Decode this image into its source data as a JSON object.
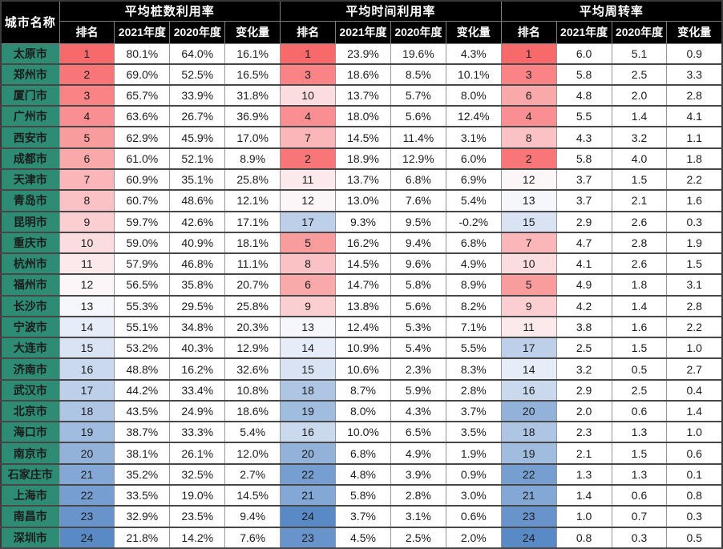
{
  "chart_data": {
    "type": "table",
    "corner_header": "城市名称",
    "groups": [
      {
        "title": "平均桩数利用率",
        "columns": [
          "排名",
          "2021年度",
          "2020年度",
          "变化量"
        ]
      },
      {
        "title": "平均时间利用率",
        "columns": [
          "排名",
          "2021年度",
          "2020年度",
          "变化量"
        ]
      },
      {
        "title": "平均周转率",
        "columns": [
          "排名",
          "2021年度",
          "2020年度",
          "变化量"
        ]
      }
    ],
    "colors": {
      "header_bg": "#000000",
      "header_text": "#FFFFFF",
      "city_bg": "#2E8B74",
      "city_text": "#FFFFFF",
      "grid_horizontal": "#474747",
      "grid_vertical": "#979797"
    },
    "rank_color_scale": {
      "min_rank": 1,
      "mid_rank": 12.5,
      "max_rank": 24,
      "min_color": "#F8696B",
      "mid_color": "#FCFCFF",
      "max_color": "#5A8AC6"
    },
    "rows": [
      {
        "city": "太原市",
        "pile": [
          1,
          "80.1%",
          "64.0%",
          "16.1%"
        ],
        "time": [
          1,
          "23.9%",
          "19.6%",
          "4.3%"
        ],
        "turnover": [
          1,
          "6.0",
          "5.1",
          "0.9"
        ]
      },
      {
        "city": "郑州市",
        "pile": [
          2,
          "69.0%",
          "52.5%",
          "16.5%"
        ],
        "time": [
          3,
          "18.6%",
          "8.5%",
          "10.1%"
        ],
        "turnover": [
          3,
          "5.8",
          "2.5",
          "3.3"
        ]
      },
      {
        "city": "厦门市",
        "pile": [
          3,
          "65.7%",
          "33.9%",
          "31.8%"
        ],
        "time": [
          10,
          "13.7%",
          "5.7%",
          "8.0%"
        ],
        "turnover": [
          6,
          "4.8",
          "2.0",
          "2.8"
        ]
      },
      {
        "city": "广州市",
        "pile": [
          4,
          "63.6%",
          "26.7%",
          "36.9%"
        ],
        "time": [
          4,
          "18.0%",
          "5.6%",
          "12.4%"
        ],
        "turnover": [
          4,
          "5.5",
          "1.4",
          "4.1"
        ]
      },
      {
        "city": "西安市",
        "pile": [
          5,
          "62.9%",
          "45.9%",
          "17.0%"
        ],
        "time": [
          7,
          "14.5%",
          "11.4%",
          "3.1%"
        ],
        "turnover": [
          8,
          "4.3",
          "3.2",
          "1.1"
        ]
      },
      {
        "city": "成都市",
        "pile": [
          6,
          "61.0%",
          "52.1%",
          "8.9%"
        ],
        "time": [
          2,
          "18.9%",
          "12.9%",
          "6.0%"
        ],
        "turnover": [
          2,
          "5.8",
          "4.0",
          "1.8"
        ]
      },
      {
        "city": "天津市",
        "pile": [
          7,
          "60.9%",
          "35.1%",
          "25.8%"
        ],
        "time": [
          11,
          "13.7%",
          "6.8%",
          "6.9%"
        ],
        "turnover": [
          12,
          "3.7",
          "1.5",
          "2.2"
        ]
      },
      {
        "city": "青岛市",
        "pile": [
          8,
          "60.7%",
          "48.6%",
          "12.1%"
        ],
        "time": [
          12,
          "13.0%",
          "7.6%",
          "5.4%"
        ],
        "turnover": [
          13,
          "3.7",
          "2.1",
          "1.6"
        ]
      },
      {
        "city": "昆明市",
        "pile": [
          9,
          "59.7%",
          "42.6%",
          "17.1%"
        ],
        "time": [
          17,
          "9.3%",
          "9.5%",
          "-0.2%"
        ],
        "turnover": [
          15,
          "2.9",
          "2.6",
          "0.3"
        ]
      },
      {
        "city": "重庆市",
        "pile": [
          10,
          "59.0%",
          "40.9%",
          "18.1%"
        ],
        "time": [
          5,
          "16.2%",
          "9.4%",
          "6.8%"
        ],
        "turnover": [
          7,
          "4.7",
          "2.8",
          "1.9"
        ]
      },
      {
        "city": "杭州市",
        "pile": [
          11,
          "57.9%",
          "46.8%",
          "11.1%"
        ],
        "time": [
          8,
          "14.5%",
          "9.6%",
          "4.9%"
        ],
        "turnover": [
          10,
          "4.1",
          "2.6",
          "1.5"
        ]
      },
      {
        "city": "福州市",
        "pile": [
          12,
          "56.5%",
          "35.8%",
          "20.7%"
        ],
        "time": [
          6,
          "14.7%",
          "5.8%",
          "8.9%"
        ],
        "turnover": [
          5,
          "4.9",
          "1.8",
          "3.1"
        ]
      },
      {
        "city": "长沙市",
        "pile": [
          13,
          "55.3%",
          "29.5%",
          "25.8%"
        ],
        "time": [
          9,
          "13.8%",
          "5.6%",
          "8.2%"
        ],
        "turnover": [
          9,
          "4.2",
          "1.4",
          "2.8"
        ]
      },
      {
        "city": "宁波市",
        "pile": [
          14,
          "55.1%",
          "34.8%",
          "20.3%"
        ],
        "time": [
          13,
          "12.4%",
          "5.3%",
          "7.1%"
        ],
        "turnover": [
          11,
          "3.8",
          "1.6",
          "2.2"
        ]
      },
      {
        "city": "大连市",
        "pile": [
          15,
          "53.2%",
          "40.3%",
          "12.9%"
        ],
        "time": [
          14,
          "10.9%",
          "5.4%",
          "5.5%"
        ],
        "turnover": [
          17,
          "2.5",
          "1.5",
          "1.0"
        ]
      },
      {
        "city": "济南市",
        "pile": [
          16,
          "48.8%",
          "16.2%",
          "32.6%"
        ],
        "time": [
          15,
          "10.6%",
          "2.3%",
          "8.3%"
        ],
        "turnover": [
          14,
          "3.2",
          "0.5",
          "2.7"
        ]
      },
      {
        "city": "武汉市",
        "pile": [
          17,
          "44.2%",
          "33.4%",
          "10.8%"
        ],
        "time": [
          18,
          "8.7%",
          "5.9%",
          "2.8%"
        ],
        "turnover": [
          16,
          "2.9",
          "2.5",
          "0.4"
        ]
      },
      {
        "city": "北京市",
        "pile": [
          18,
          "43.5%",
          "24.9%",
          "18.6%"
        ],
        "time": [
          19,
          "8.0%",
          "4.3%",
          "3.7%"
        ],
        "turnover": [
          20,
          "2.0",
          "0.6",
          "1.4"
        ]
      },
      {
        "city": "海口市",
        "pile": [
          19,
          "38.7%",
          "33.3%",
          "5.4%"
        ],
        "time": [
          16,
          "10.0%",
          "6.5%",
          "3.5%"
        ],
        "turnover": [
          18,
          "2.3",
          "1.3",
          "1.0"
        ]
      },
      {
        "city": "南京市",
        "pile": [
          20,
          "38.1%",
          "26.1%",
          "12.0%"
        ],
        "time": [
          20,
          "6.8%",
          "4.9%",
          "1.9%"
        ],
        "turnover": [
          19,
          "2.1",
          "1.5",
          "0.6"
        ]
      },
      {
        "city": "石家庄市",
        "pile": [
          21,
          "35.2%",
          "32.5%",
          "2.7%"
        ],
        "time": [
          22,
          "4.8%",
          "3.9%",
          "0.9%"
        ],
        "turnover": [
          22,
          "1.3",
          "1.3",
          "0.1"
        ]
      },
      {
        "city": "上海市",
        "pile": [
          22,
          "33.5%",
          "19.0%",
          "14.5%"
        ],
        "time": [
          21,
          "5.8%",
          "2.8%",
          "3.0%"
        ],
        "turnover": [
          21,
          "1.4",
          "0.6",
          "0.8"
        ]
      },
      {
        "city": "南昌市",
        "pile": [
          23,
          "32.9%",
          "23.5%",
          "9.4%"
        ],
        "time": [
          24,
          "3.7%",
          "3.1%",
          "0.6%"
        ],
        "turnover": [
          23,
          "1.0",
          "0.7",
          "0.3"
        ]
      },
      {
        "city": "深圳市",
        "pile": [
          24,
          "21.8%",
          "14.2%",
          "7.6%"
        ],
        "time": [
          23,
          "4.5%",
          "2.5%",
          "2.0%"
        ],
        "turnover": [
          24,
          "0.8",
          "0.3",
          "0.5"
        ]
      }
    ]
  }
}
